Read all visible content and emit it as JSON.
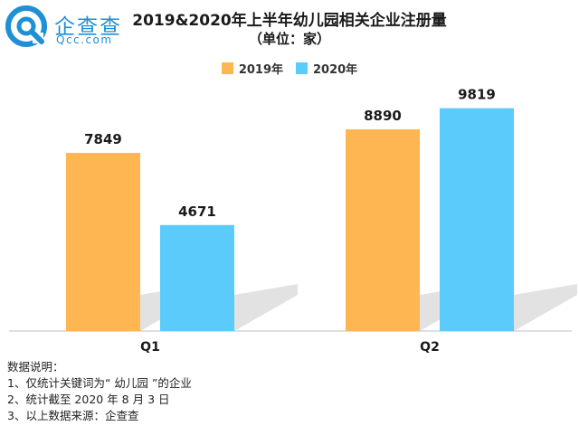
{
  "logo": {
    "name": "企查查",
    "sub": "Qcc.com",
    "icon": "qcc-logo-icon"
  },
  "header": {
    "title": "2019&2020年上半年幼儿园相关企业注册量",
    "subtitle": "（单位：家）"
  },
  "colors": {
    "s2019": "#FDB652",
    "s2020": "#5BCBFB",
    "axis": "#bfbfbf",
    "shadow": "#cfcfcf"
  },
  "chart_data": {
    "type": "bar",
    "categories": [
      "Q1",
      "Q2"
    ],
    "series": [
      {
        "name": "2019年",
        "values": [
          7849,
          8890
        ]
      },
      {
        "name": "2020年",
        "values": [
          4671,
          9819
        ]
      }
    ],
    "ylim": [
      0,
      11000
    ],
    "grid": false,
    "legend": "top-center"
  },
  "notes": {
    "heading": "数据说明：",
    "lines": [
      "1、仅统计关键词为“ 幼儿园 ”的企业",
      "2、统计截至 2020 年 8 月 3 日",
      "3、以上数据来源：企查查"
    ]
  }
}
